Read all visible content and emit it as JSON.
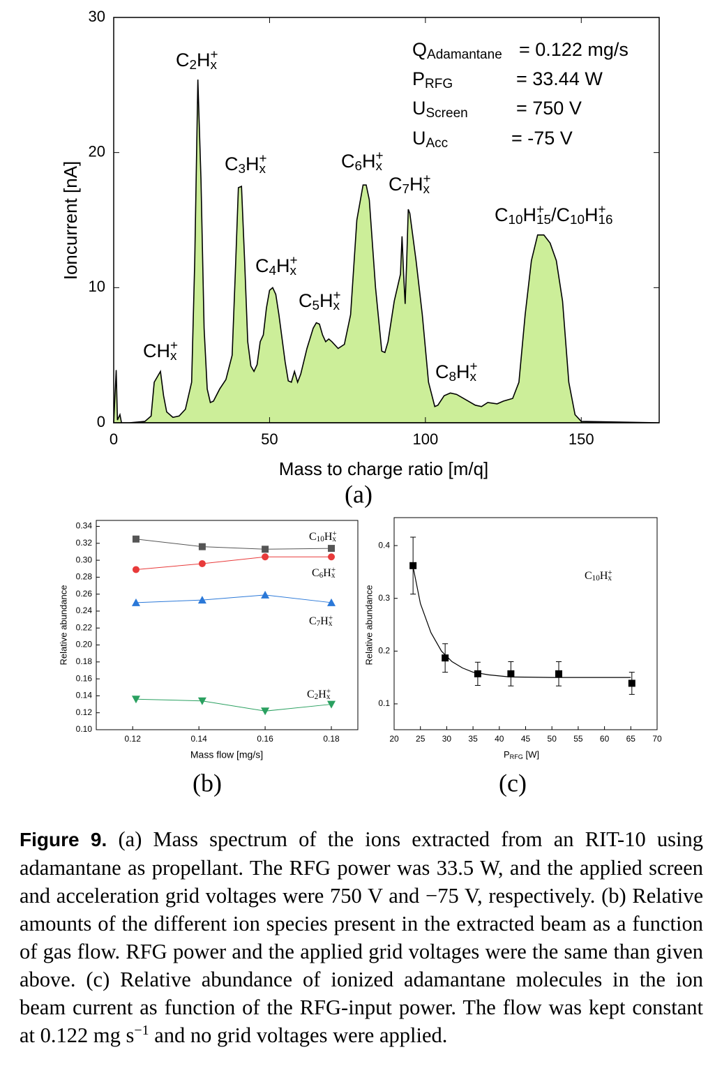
{
  "chart_data": [
    {
      "type": "area",
      "panel_label": "(a)",
      "x_label": "Mass to charge ratio [m/q]",
      "y_label": "Ioncurrent [nA]",
      "xlim": [
        0,
        175
      ],
      "ylim": [
        0,
        30
      ],
      "xticks": [
        0,
        50,
        100,
        150
      ],
      "yticks": [
        0,
        10,
        20,
        30
      ],
      "color": "#ccee99",
      "line_color": "#000000",
      "x": [
        0,
        0.8,
        1.2,
        2,
        2.5,
        5,
        10,
        12,
        13,
        14,
        15,
        16,
        17,
        19,
        21,
        23,
        24,
        25,
        26,
        27,
        28,
        29,
        30,
        31,
        32,
        34,
        36,
        38,
        39,
        40,
        41,
        42,
        43,
        44,
        45,
        46,
        47,
        48,
        49,
        50,
        51,
        52,
        53,
        55,
        56,
        57,
        58,
        59,
        60,
        62,
        64,
        65,
        66,
        67,
        68,
        69,
        70,
        72,
        74,
        76,
        78,
        80,
        81,
        82,
        84,
        86,
        87,
        88,
        90,
        92,
        92.5,
        93,
        93.5,
        94,
        94.5,
        95,
        97,
        99,
        101,
        103,
        104,
        106,
        108,
        110,
        113,
        116,
        118,
        120,
        123,
        125,
        128,
        130,
        132,
        134,
        136,
        138,
        140,
        142,
        144,
        146,
        148,
        150,
        175
      ],
      "values": [
        0,
        3.9,
        0.2,
        0.6,
        0,
        0,
        0.1,
        0.5,
        3,
        3.4,
        3.8,
        2,
        0.8,
        0.4,
        0.5,
        1,
        2,
        3,
        12,
        25.4,
        18,
        7,
        2.5,
        1.5,
        1.6,
        2.5,
        3.2,
        5,
        11,
        17.4,
        17.5,
        12,
        6,
        4.2,
        3.8,
        4.3,
        6,
        6.5,
        8.5,
        9.8,
        10,
        9.5,
        8,
        4.5,
        3.1,
        3,
        3.8,
        3,
        3.6,
        5.5,
        7,
        7.4,
        7.3,
        6.5,
        6,
        6.2,
        6,
        5.5,
        5.8,
        8,
        15,
        17.6,
        17.6,
        16.5,
        10,
        5.3,
        5.2,
        6,
        9,
        11,
        13.8,
        11,
        8.8,
        12,
        15.8,
        15.5,
        12,
        8,
        3,
        1.2,
        1.3,
        2,
        2.2,
        2.1,
        1.7,
        1.3,
        1.2,
        1.5,
        1.4,
        1.6,
        1.8,
        3,
        8,
        12,
        13.9,
        13.9,
        13.3,
        12,
        9,
        3,
        0.6,
        0.1,
        0
      ],
      "annotations": [
        [
          "CH",
          "x",
          "+"
        ],
        [
          "C",
          "2",
          "H",
          "x",
          "+"
        ],
        [
          "C",
          "3",
          "H",
          "x",
          "+"
        ],
        [
          "C",
          "4",
          "H",
          "x",
          "+"
        ],
        [
          "C",
          "5",
          "H",
          "x",
          "+"
        ],
        [
          "C",
          "6",
          "H",
          "x",
          "+"
        ],
        [
          "C",
          "7",
          "H",
          "x",
          "+"
        ],
        [
          "C",
          "8",
          "H",
          "x",
          "+"
        ],
        [
          "C",
          "10",
          "H",
          "15",
          "+",
          "/C",
          "10",
          "H",
          "16",
          "+"
        ]
      ],
      "parameters": [
        {
          "symbol": "Q",
          "subscript": "Adamantane",
          "value": "= 0.122 mg/s"
        },
        {
          "symbol": "P",
          "subscript": "RFG",
          "value": "= 33.44 W"
        },
        {
          "symbol": "U",
          "subscript": "Screen",
          "value": "= 750 V"
        },
        {
          "symbol": "U",
          "subscript": "Acc",
          "value": "= -75 V"
        }
      ]
    },
    {
      "type": "line",
      "panel_label": "(b)",
      "x_label": "Mass flow [mg/s]",
      "y_label": "Relative abundance",
      "xlim": [
        0.109,
        0.188
      ],
      "ylim": [
        0.1,
        0.347
      ],
      "xticks": [
        0.12,
        0.14,
        0.16,
        0.18
      ],
      "yticks": [
        {
          "value": 0.1,
          "label": "0.10"
        },
        0.12,
        0.14,
        0.16,
        0.18,
        {
          "value": 0.2,
          "label": "0.20"
        },
        0.22,
        0.24,
        0.26,
        0.28,
        {
          "value": 0.3,
          "label": "0.30"
        },
        0.32,
        0.34
      ],
      "x": [
        0.121,
        0.141,
        0.16,
        0.18
      ],
      "series": [
        {
          "name": [
            "C",
            "10",
            "H",
            "x",
            "+"
          ],
          "color": "#555555",
          "marker": "square",
          "values": [
            0.325,
            0.316,
            0.313,
            0.314
          ]
        },
        {
          "name": [
            "C",
            "6",
            "H",
            "x",
            "+"
          ],
          "color": "#e83a3a",
          "marker": "circle",
          "values": [
            0.289,
            0.296,
            0.304,
            0.304
          ]
        },
        {
          "name": [
            "C",
            "7",
            "H",
            "x",
            "+"
          ],
          "color": "#2a78d8",
          "marker": "triangle-up",
          "values": [
            0.25,
            0.253,
            0.259,
            0.25
          ]
        },
        {
          "name": [
            "C",
            "2",
            "H",
            "x",
            "+"
          ],
          "color": "#2aa060",
          "marker": "triangle-down",
          "values": [
            0.136,
            0.134,
            0.122,
            0.13
          ]
        }
      ]
    },
    {
      "type": "scatter",
      "panel_label": "(c)",
      "x_label": [
        "P",
        "RFG",
        " [W]"
      ],
      "y_label": "Relative abundance",
      "xlim": [
        20,
        70
      ],
      "ylim": [
        0.051,
        0.453
      ],
      "xticks": [
        20,
        25,
        30,
        35,
        40,
        45,
        50,
        55,
        60,
        65,
        70
      ],
      "yticks": [
        0.1,
        0.2,
        0.3,
        0.4
      ],
      "color": "#000000",
      "x": [
        23.6,
        29.7,
        35.9,
        42.2,
        51.3,
        65.2
      ],
      "values": [
        0.362,
        0.187,
        0.157,
        0.157,
        0.157,
        0.139
      ],
      "errors": [
        0.054,
        0.027,
        0.022,
        0.023,
        0.023,
        0.021
      ],
      "fit": {
        "x": [
          23.6,
          25,
          27,
          29,
          31,
          33,
          35,
          38,
          42,
          50,
          65
        ],
        "values": [
          0.36,
          0.29,
          0.235,
          0.2,
          0.18,
          0.168,
          0.16,
          0.155,
          0.151,
          0.15,
          0.15
        ]
      },
      "annotation": [
        "C",
        "10",
        "H",
        "x",
        "+"
      ]
    }
  ],
  "caption": {
    "label": "Figure 9.",
    "text": [
      "(a) Mass spectrum of the ions extracted from an RIT-10 using adamantane as propellant. The RFG power was 33.5 W, and the applied screen and acceleration grid voltages were 750 V and −75 V, respectively. (b) Relative amounts of the different ion species present in the extracted beam as a function of gas flow. RFG power and the applied grid voltages were the same than given above. (c) Relative abundance of ionized adamantane molecules in the ion beam current as function of the RFG-input power. The flow was kept constant at 0.122 mg s",
      "−1",
      " and no grid voltages were applied."
    ]
  }
}
